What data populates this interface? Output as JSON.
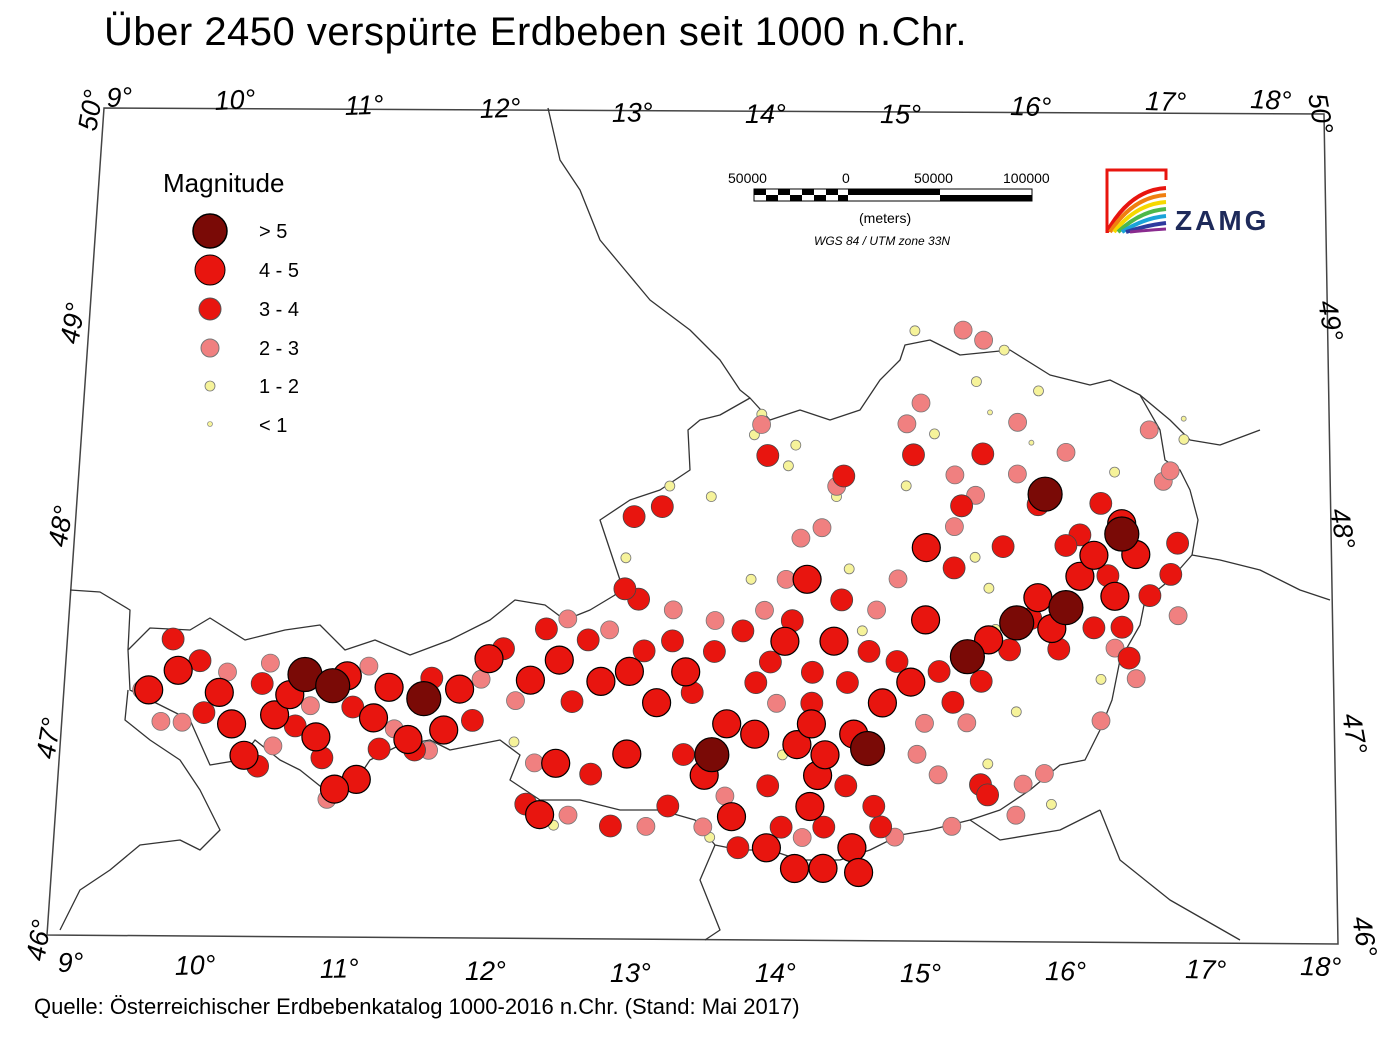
{
  "title": "Über 2450 verspürte Erdbeben seit 1000 n.Chr.",
  "source": "Quelle: Österreichischer Erdbebenkatalog 1000-2016 n.Chr. (Stand: Mai 2017)",
  "legend": {
    "title": "Magnitude",
    "classes": [
      {
        "label": "> 5",
        "color": "#7a0a06"
      },
      {
        "label": "4 - 5",
        "color": "#e8150f"
      },
      {
        "label": "3 - 4",
        "color": "#e8150f"
      },
      {
        "label": "2 - 3",
        "color": "#f08080"
      },
      {
        "label": "1 - 2",
        "color": "#f6f39a"
      },
      {
        "label": "< 1",
        "color": "#f6f39a"
      }
    ]
  },
  "scalebar": {
    "labels": [
      "50000",
      "0",
      "50000",
      "100000"
    ],
    "unit": "(meters)",
    "projection": "WGS 84 / UTM zone 33N"
  },
  "logo": {
    "text": "ZAMG"
  },
  "axes": {
    "lon_top": [
      "9°",
      "10°",
      "11°",
      "12°",
      "13°",
      "14°",
      "15°",
      "16°",
      "17°",
      "18°"
    ],
    "lon_bottom": [
      "9°",
      "10°",
      "11°",
      "12°",
      "13°",
      "14°",
      "15°",
      "16°",
      "17°",
      "18°"
    ],
    "lat_left": [
      "50°",
      "49°",
      "48°",
      "47°",
      "46°"
    ],
    "lat_right": [
      "50°",
      "49°",
      "48°",
      "47°",
      "46°"
    ]
  },
  "colors": {
    "class5": "#7a0a06",
    "class4": "#e8150f",
    "class3": "#e8150f",
    "class2": "#f08080",
    "class1": "#f6f39a",
    "class0": "#f6f39a"
  },
  "map_data": {
    "events": [
      {
        "lon": 10.7,
        "lat": 47.3,
        "class": 5
      },
      {
        "lon": 10.9,
        "lat": 47.25,
        "class": 5
      },
      {
        "lon": 11.55,
        "lat": 47.2,
        "class": 5
      },
      {
        "lon": 13.6,
        "lat": 46.95,
        "class": 5
      },
      {
        "lon": 14.7,
        "lat": 46.98,
        "class": 5
      },
      {
        "lon": 15.4,
        "lat": 47.42,
        "class": 5
      },
      {
        "lon": 15.75,
        "lat": 47.58,
        "class": 5
      },
      {
        "lon": 16.1,
        "lat": 47.65,
        "class": 5
      },
      {
        "lon": 15.95,
        "lat": 48.2,
        "class": 5
      },
      {
        "lon": 16.5,
        "lat": 48.0,
        "class": 5
      },
      {
        "lon": 9.6,
        "lat": 47.2,
        "class": 4
      },
      {
        "lon": 9.8,
        "lat": 47.3,
        "class": 4
      },
      {
        "lon": 10.1,
        "lat": 47.2,
        "class": 4
      },
      {
        "lon": 10.2,
        "lat": 47.05,
        "class": 4
      },
      {
        "lon": 10.3,
        "lat": 46.9,
        "class": 4
      },
      {
        "lon": 10.5,
        "lat": 47.1,
        "class": 4
      },
      {
        "lon": 10.6,
        "lat": 47.2,
        "class": 4
      },
      {
        "lon": 10.8,
        "lat": 47.0,
        "class": 4
      },
      {
        "lon": 11.0,
        "lat": 47.3,
        "class": 4
      },
      {
        "lon": 11.2,
        "lat": 47.1,
        "class": 4
      },
      {
        "lon": 11.3,
        "lat": 47.25,
        "class": 4
      },
      {
        "lon": 11.45,
        "lat": 47.0,
        "class": 4
      },
      {
        "lon": 11.7,
        "lat": 47.05,
        "class": 4
      },
      {
        "lon": 11.8,
        "lat": 47.25,
        "class": 4
      },
      {
        "lon": 12.0,
        "lat": 47.4,
        "class": 4
      },
      {
        "lon": 12.3,
        "lat": 47.3,
        "class": 4
      },
      {
        "lon": 12.5,
        "lat": 47.4,
        "class": 4
      },
      {
        "lon": 12.8,
        "lat": 47.3,
        "class": 4
      },
      {
        "lon": 13.0,
        "lat": 47.35,
        "class": 4
      },
      {
        "lon": 13.2,
        "lat": 47.2,
        "class": 4
      },
      {
        "lon": 13.4,
        "lat": 47.35,
        "class": 4
      },
      {
        "lon": 13.7,
        "lat": 47.1,
        "class": 4
      },
      {
        "lon": 13.9,
        "lat": 47.05,
        "class": 4
      },
      {
        "lon": 13.55,
        "lat": 46.85,
        "class": 4
      },
      {
        "lon": 13.75,
        "lat": 46.65,
        "class": 4
      },
      {
        "lon": 14.0,
        "lat": 46.5,
        "class": 4
      },
      {
        "lon": 14.2,
        "lat": 46.4,
        "class": 4
      },
      {
        "lon": 14.4,
        "lat": 46.4,
        "class": 4
      },
      {
        "lon": 14.6,
        "lat": 46.5,
        "class": 4
      },
      {
        "lon": 14.65,
        "lat": 46.38,
        "class": 4
      },
      {
        "lon": 14.3,
        "lat": 46.7,
        "class": 4
      },
      {
        "lon": 14.35,
        "lat": 46.85,
        "class": 4
      },
      {
        "lon": 14.2,
        "lat": 47.0,
        "class": 4
      },
      {
        "lon": 14.3,
        "lat": 47.1,
        "class": 4
      },
      {
        "lon": 14.4,
        "lat": 46.95,
        "class": 4
      },
      {
        "lon": 14.6,
        "lat": 47.05,
        "class": 4
      },
      {
        "lon": 14.8,
        "lat": 47.2,
        "class": 4
      },
      {
        "lon": 14.45,
        "lat": 47.5,
        "class": 4
      },
      {
        "lon": 14.1,
        "lat": 47.5,
        "class": 4
      },
      {
        "lon": 14.25,
        "lat": 47.8,
        "class": 4
      },
      {
        "lon": 15.0,
        "lat": 47.3,
        "class": 4
      },
      {
        "lon": 15.1,
        "lat": 47.6,
        "class": 4
      },
      {
        "lon": 15.55,
        "lat": 47.5,
        "class": 4
      },
      {
        "lon": 15.9,
        "lat": 47.7,
        "class": 4
      },
      {
        "lon": 16.0,
        "lat": 47.55,
        "class": 4
      },
      {
        "lon": 16.2,
        "lat": 47.8,
        "class": 4
      },
      {
        "lon": 16.3,
        "lat": 47.9,
        "class": 4
      },
      {
        "lon": 16.45,
        "lat": 47.7,
        "class": 4
      },
      {
        "lon": 16.6,
        "lat": 47.9,
        "class": 4
      },
      {
        "lon": 15.1,
        "lat": 47.95,
        "class": 4
      },
      {
        "lon": 13.0,
        "lat": 46.95,
        "class": 4
      },
      {
        "lon": 12.5,
        "lat": 46.9,
        "class": 4
      },
      {
        "lon": 12.4,
        "lat": 46.65,
        "class": 4
      },
      {
        "lon": 11.1,
        "lat": 46.8,
        "class": 4
      },
      {
        "lon": 10.95,
        "lat": 46.75,
        "class": 4
      },
      {
        "lon": 16.5,
        "lat": 48.05,
        "class": 4
      },
      {
        "lon": 9.75,
        "lat": 47.45,
        "class": 3
      },
      {
        "lon": 9.95,
        "lat": 47.35,
        "class": 3
      },
      {
        "lon": 10.0,
        "lat": 47.1,
        "class": 3
      },
      {
        "lon": 10.4,
        "lat": 47.25,
        "class": 3
      },
      {
        "lon": 10.65,
        "lat": 47.05,
        "class": 3
      },
      {
        "lon": 11.05,
        "lat": 47.15,
        "class": 3
      },
      {
        "lon": 11.25,
        "lat": 46.95,
        "class": 3
      },
      {
        "lon": 11.6,
        "lat": 47.3,
        "class": 3
      },
      {
        "lon": 11.9,
        "lat": 47.1,
        "class": 3
      },
      {
        "lon": 12.1,
        "lat": 47.45,
        "class": 3
      },
      {
        "lon": 12.4,
        "lat": 47.55,
        "class": 3
      },
      {
        "lon": 12.6,
        "lat": 47.2,
        "class": 3
      },
      {
        "lon": 12.7,
        "lat": 47.5,
        "class": 3
      },
      {
        "lon": 13.05,
        "lat": 47.7,
        "class": 3
      },
      {
        "lon": 13.1,
        "lat": 47.45,
        "class": 3
      },
      {
        "lon": 13.3,
        "lat": 47.5,
        "class": 3
      },
      {
        "lon": 13.45,
        "lat": 47.25,
        "class": 3
      },
      {
        "lon": 13.6,
        "lat": 47.45,
        "class": 3
      },
      {
        "lon": 13.8,
        "lat": 47.55,
        "class": 3
      },
      {
        "lon": 13.9,
        "lat": 47.3,
        "class": 3
      },
      {
        "lon": 14.0,
        "lat": 47.4,
        "class": 3
      },
      {
        "lon": 14.15,
        "lat": 47.6,
        "class": 3
      },
      {
        "lon": 14.3,
        "lat": 47.35,
        "class": 3
      },
      {
        "lon": 14.55,
        "lat": 47.3,
        "class": 3
      },
      {
        "lon": 14.7,
        "lat": 47.45,
        "class": 3
      },
      {
        "lon": 14.9,
        "lat": 47.4,
        "class": 3
      },
      {
        "lon": 15.2,
        "lat": 47.35,
        "class": 3
      },
      {
        "lon": 15.3,
        "lat": 47.2,
        "class": 3
      },
      {
        "lon": 15.5,
        "lat": 47.3,
        "class": 3
      },
      {
        "lon": 15.7,
        "lat": 47.45,
        "class": 3
      },
      {
        "lon": 15.85,
        "lat": 47.6,
        "class": 3
      },
      {
        "lon": 16.05,
        "lat": 47.45,
        "class": 3
      },
      {
        "lon": 16.3,
        "lat": 47.55,
        "class": 3
      },
      {
        "lon": 16.4,
        "lat": 47.8,
        "class": 3
      },
      {
        "lon": 16.7,
        "lat": 47.7,
        "class": 3
      },
      {
        "lon": 16.85,
        "lat": 47.8,
        "class": 3
      },
      {
        "lon": 16.9,
        "lat": 47.95,
        "class": 3
      },
      {
        "lon": 16.2,
        "lat": 48.0,
        "class": 3
      },
      {
        "lon": 15.9,
        "lat": 48.15,
        "class": 3
      },
      {
        "lon": 15.35,
        "lat": 48.15,
        "class": 3
      },
      {
        "lon": 15.0,
        "lat": 48.4,
        "class": 3
      },
      {
        "lon": 15.5,
        "lat": 48.4,
        "class": 3
      },
      {
        "lon": 14.5,
        "lat": 48.3,
        "class": 3
      },
      {
        "lon": 13.95,
        "lat": 48.4,
        "class": 3
      },
      {
        "lon": 13.0,
        "lat": 48.1,
        "class": 3
      },
      {
        "lon": 13.2,
        "lat": 48.15,
        "class": 3
      },
      {
        "lon": 12.95,
        "lat": 47.75,
        "class": 3
      },
      {
        "lon": 14.3,
        "lat": 47.2,
        "class": 3
      },
      {
        "lon": 14.4,
        "lat": 46.6,
        "class": 3
      },
      {
        "lon": 14.8,
        "lat": 46.6,
        "class": 3
      },
      {
        "lon": 14.1,
        "lat": 46.6,
        "class": 3
      },
      {
        "lon": 13.8,
        "lat": 46.5,
        "class": 3
      },
      {
        "lon": 13.3,
        "lat": 46.7,
        "class": 3
      },
      {
        "lon": 12.9,
        "lat": 46.6,
        "class": 3
      },
      {
        "lon": 12.3,
        "lat": 46.7,
        "class": 3
      },
      {
        "lon": 12.75,
        "lat": 46.85,
        "class": 3
      },
      {
        "lon": 13.4,
        "lat": 46.95,
        "class": 3
      },
      {
        "lon": 14.0,
        "lat": 46.8,
        "class": 3
      },
      {
        "lon": 14.55,
        "lat": 46.8,
        "class": 3
      },
      {
        "lon": 14.75,
        "lat": 46.7,
        "class": 3
      },
      {
        "lon": 15.5,
        "lat": 46.8,
        "class": 3
      },
      {
        "lon": 15.55,
        "lat": 46.75,
        "class": 3
      },
      {
        "lon": 16.5,
        "lat": 47.55,
        "class": 3
      },
      {
        "lon": 16.55,
        "lat": 47.4,
        "class": 3
      },
      {
        "lon": 10.4,
        "lat": 46.85,
        "class": 3
      },
      {
        "lon": 10.85,
        "lat": 46.9,
        "class": 3
      },
      {
        "lon": 11.5,
        "lat": 46.95,
        "class": 3
      },
      {
        "lon": 14.5,
        "lat": 47.7,
        "class": 3
      },
      {
        "lon": 15.3,
        "lat": 47.85,
        "class": 3
      },
      {
        "lon": 15.65,
        "lat": 47.95,
        "class": 3
      },
      {
        "lon": 16.1,
        "lat": 47.95,
        "class": 3
      },
      {
        "lon": 16.35,
        "lat": 48.15,
        "class": 3
      },
      {
        "lon": 9.55,
        "lat": 47.2,
        "class": 2
      },
      {
        "lon": 9.85,
        "lat": 47.05,
        "class": 2
      },
      {
        "lon": 10.15,
        "lat": 47.3,
        "class": 2
      },
      {
        "lon": 10.45,
        "lat": 47.35,
        "class": 2
      },
      {
        "lon": 10.75,
        "lat": 47.15,
        "class": 2
      },
      {
        "lon": 11.15,
        "lat": 47.35,
        "class": 2
      },
      {
        "lon": 11.35,
        "lat": 47.05,
        "class": 2
      },
      {
        "lon": 11.95,
        "lat": 47.3,
        "class": 2
      },
      {
        "lon": 12.2,
        "lat": 47.2,
        "class": 2
      },
      {
        "lon": 12.55,
        "lat": 47.6,
        "class": 2
      },
      {
        "lon": 12.85,
        "lat": 47.55,
        "class": 2
      },
      {
        "lon": 12.35,
        "lat": 46.9,
        "class": 2
      },
      {
        "lon": 12.6,
        "lat": 46.65,
        "class": 2
      },
      {
        "lon": 13.15,
        "lat": 46.6,
        "class": 2
      },
      {
        "lon": 13.55,
        "lat": 46.6,
        "class": 2
      },
      {
        "lon": 13.7,
        "lat": 46.75,
        "class": 2
      },
      {
        "lon": 14.25,
        "lat": 46.55,
        "class": 2
      },
      {
        "lon": 14.9,
        "lat": 46.55,
        "class": 2
      },
      {
        "lon": 15.05,
        "lat": 46.95,
        "class": 2
      },
      {
        "lon": 15.3,
        "lat": 46.6,
        "class": 2
      },
      {
        "lon": 15.75,
        "lat": 46.65,
        "class": 2
      },
      {
        "lon": 15.1,
        "lat": 47.1,
        "class": 2
      },
      {
        "lon": 15.4,
        "lat": 47.1,
        "class": 2
      },
      {
        "lon": 15.2,
        "lat": 46.85,
        "class": 2
      },
      {
        "lon": 14.05,
        "lat": 47.2,
        "class": 2
      },
      {
        "lon": 13.95,
        "lat": 47.65,
        "class": 2
      },
      {
        "lon": 13.6,
        "lat": 47.6,
        "class": 2
      },
      {
        "lon": 13.3,
        "lat": 47.65,
        "class": 2
      },
      {
        "lon": 14.35,
        "lat": 48.05,
        "class": 2
      },
      {
        "lon": 14.1,
        "lat": 47.8,
        "class": 2
      },
      {
        "lon": 14.75,
        "lat": 47.65,
        "class": 2
      },
      {
        "lon": 14.9,
        "lat": 47.8,
        "class": 2
      },
      {
        "lon": 15.3,
        "lat": 48.05,
        "class": 2
      },
      {
        "lon": 15.45,
        "lat": 48.2,
        "class": 2
      },
      {
        "lon": 15.75,
        "lat": 48.3,
        "class": 2
      },
      {
        "lon": 15.3,
        "lat": 48.3,
        "class": 2
      },
      {
        "lon": 14.45,
        "lat": 48.25,
        "class": 2
      },
      {
        "lon": 13.9,
        "lat": 48.55,
        "class": 2
      },
      {
        "lon": 14.95,
        "lat": 48.55,
        "class": 2
      },
      {
        "lon": 15.05,
        "lat": 48.65,
        "class": 2
      },
      {
        "lon": 16.1,
        "lat": 48.4,
        "class": 2
      },
      {
        "lon": 16.7,
        "lat": 48.5,
        "class": 2
      },
      {
        "lon": 16.8,
        "lat": 48.25,
        "class": 2
      },
      {
        "lon": 16.85,
        "lat": 48.3,
        "class": 2
      },
      {
        "lon": 16.9,
        "lat": 47.6,
        "class": 2
      },
      {
        "lon": 16.45,
        "lat": 47.45,
        "class": 2
      },
      {
        "lon": 16.6,
        "lat": 47.3,
        "class": 2
      },
      {
        "lon": 16.35,
        "lat": 47.1,
        "class": 2
      },
      {
        "lon": 15.95,
        "lat": 46.85,
        "class": 2
      },
      {
        "lon": 15.8,
        "lat": 46.8,
        "class": 2
      },
      {
        "lon": 10.9,
        "lat": 46.7,
        "class": 2
      },
      {
        "lon": 10.5,
        "lat": 46.95,
        "class": 2
      },
      {
        "lon": 9.7,
        "lat": 47.05,
        "class": 2
      },
      {
        "lon": 11.6,
        "lat": 46.95,
        "class": 2
      },
      {
        "lon": 15.5,
        "lat": 48.95,
        "class": 2
      },
      {
        "lon": 15.35,
        "lat": 49.0,
        "class": 2
      },
      {
        "lon": 15.75,
        "lat": 48.55,
        "class": 2
      },
      {
        "lon": 14.2,
        "lat": 48.0,
        "class": 2
      },
      {
        "lon": 12.95,
        "lat": 47.9,
        "class": 1
      },
      {
        "lon": 13.25,
        "lat": 48.25,
        "class": 1
      },
      {
        "lon": 13.55,
        "lat": 48.2,
        "class": 1
      },
      {
        "lon": 13.85,
        "lat": 47.8,
        "class": 1
      },
      {
        "lon": 14.1,
        "lat": 48.35,
        "class": 1
      },
      {
        "lon": 14.45,
        "lat": 48.2,
        "class": 1
      },
      {
        "lon": 14.55,
        "lat": 47.85,
        "class": 1
      },
      {
        "lon": 14.15,
        "lat": 48.45,
        "class": 1
      },
      {
        "lon": 13.85,
        "lat": 48.5,
        "class": 1
      },
      {
        "lon": 13.9,
        "lat": 48.6,
        "class": 1
      },
      {
        "lon": 15.15,
        "lat": 48.5,
        "class": 1
      },
      {
        "lon": 15.45,
        "lat": 48.75,
        "class": 1
      },
      {
        "lon": 15.65,
        "lat": 48.9,
        "class": 1
      },
      {
        "lon": 15.9,
        "lat": 48.7,
        "class": 1
      },
      {
        "lon": 15.0,
        "lat": 49.0,
        "class": 1
      },
      {
        "lon": 14.95,
        "lat": 48.25,
        "class": 1
      },
      {
        "lon": 15.45,
        "lat": 47.9,
        "class": 1
      },
      {
        "lon": 15.55,
        "lat": 47.75,
        "class": 1
      },
      {
        "lon": 15.6,
        "lat": 47.55,
        "class": 1
      },
      {
        "lon": 15.75,
        "lat": 47.15,
        "class": 1
      },
      {
        "lon": 15.55,
        "lat": 46.9,
        "class": 1
      },
      {
        "lon": 16.0,
        "lat": 46.7,
        "class": 1
      },
      {
        "lon": 16.35,
        "lat": 47.3,
        "class": 1
      },
      {
        "lon": 16.95,
        "lat": 48.45,
        "class": 1
      },
      {
        "lon": 16.45,
        "lat": 48.3,
        "class": 1
      },
      {
        "lon": 12.2,
        "lat": 47.0,
        "class": 1
      },
      {
        "lon": 12.5,
        "lat": 46.6,
        "class": 1
      },
      {
        "lon": 13.6,
        "lat": 46.55,
        "class": 1
      },
      {
        "lon": 14.1,
        "lat": 46.95,
        "class": 1
      },
      {
        "lon": 14.65,
        "lat": 47.55,
        "class": 1
      },
      {
        "lon": 15.85,
        "lat": 48.45,
        "class": 0
      },
      {
        "lon": 15.55,
        "lat": 48.6,
        "class": 0
      },
      {
        "lon": 16.95,
        "lat": 48.55,
        "class": 0
      }
    ]
  }
}
